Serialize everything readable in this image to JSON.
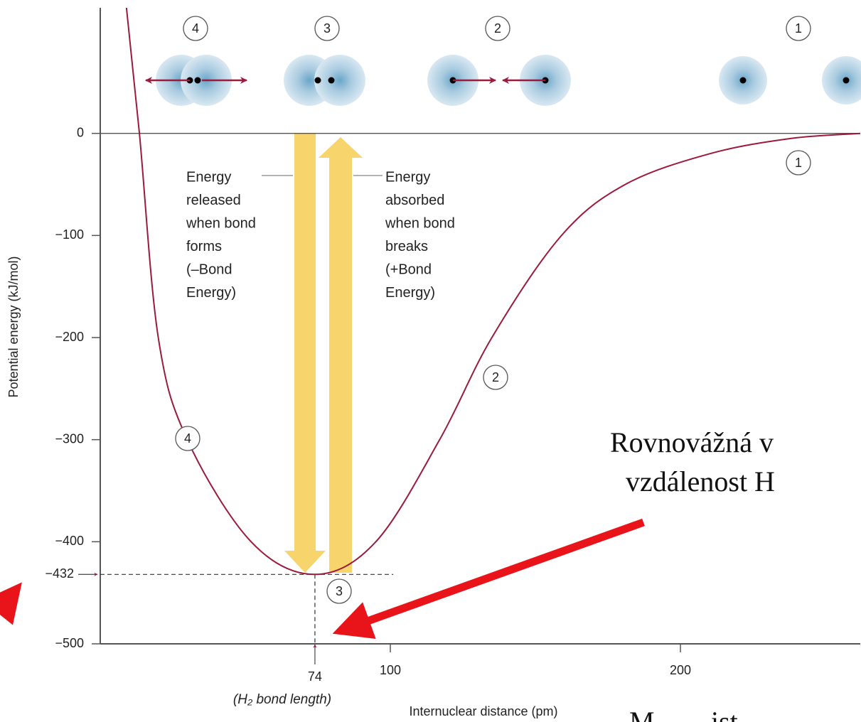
{
  "chart_data": {
    "type": "line",
    "x_label": "Internuclear distance (pm)",
    "y_label": "Potential energy (kJ/mol)",
    "xlim": [
      0,
      262
    ],
    "ylim": [
      -500,
      123
    ],
    "xticks": [
      {
        "value": 74,
        "label": "74"
      },
      100,
      200
    ],
    "x_tick_note": "(H₂ bond length)",
    "yticks": [
      0,
      {
        "value": -100,
        "label": "−100"
      },
      {
        "value": -200,
        "label": "−200"
      },
      {
        "value": -300,
        "label": "−300"
      },
      {
        "value": -400,
        "label": "−400"
      },
      {
        "value": -432,
        "label": "−432"
      },
      {
        "value": -500,
        "label": "−500"
      }
    ],
    "series": [
      {
        "color": "#9b1b3c",
        "x": [
          9,
          13.5,
          20,
          30,
          52,
          74,
          95,
          117,
          135,
          159,
          181,
          210,
          238,
          262
        ],
        "values": [
          124,
          0,
          -200,
          -300,
          -400,
          -432,
          -400,
          -300,
          -200,
          -100,
          -50,
          -20,
          -5,
          0
        ]
      }
    ],
    "released_note": [
      "Energy",
      "released",
      "when bond",
      "forms",
      "(–Bond",
      "Energy)"
    ],
    "absorbed_note": [
      "Energy",
      "absorbed",
      "when bond",
      "breaks",
      "(+Bond",
      "Energy)"
    ],
    "stage_labels": [
      "4",
      "3",
      "2",
      "1"
    ],
    "curve_labels": [
      "1",
      "2",
      "3",
      "4"
    ],
    "overlay_text": [
      "Rovnovážná v",
      "vzdálenost H",
      "M",
      "ist"
    ]
  }
}
